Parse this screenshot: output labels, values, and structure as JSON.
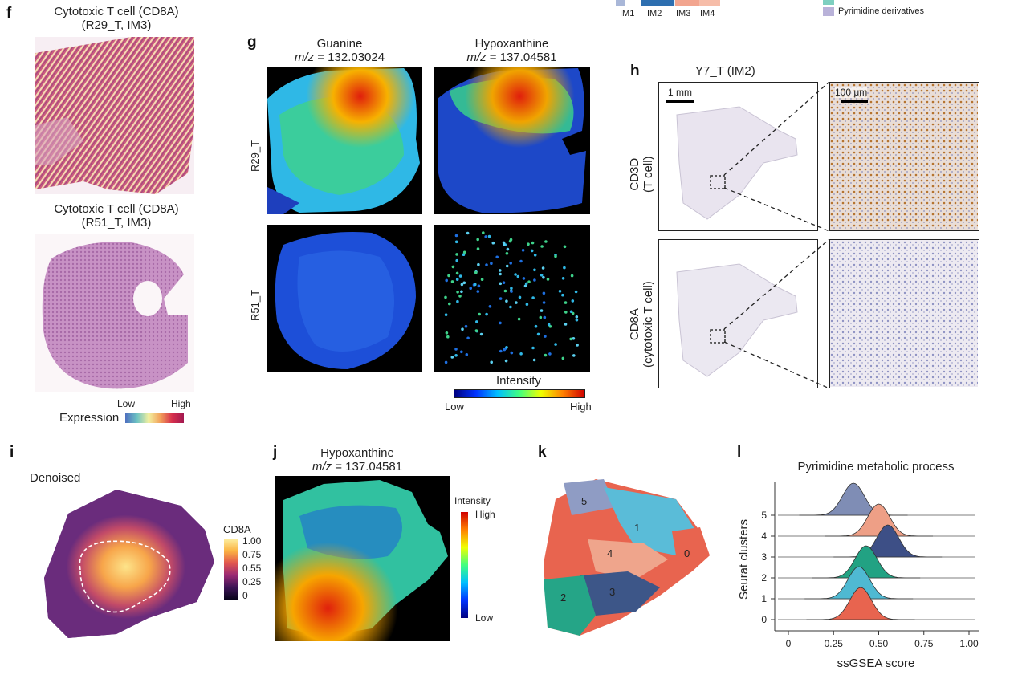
{
  "top_legend": {
    "im_labels": [
      "IM1",
      "IM2",
      "IM3",
      "IM4"
    ],
    "im_colors": [
      "#a9b7d8",
      "#2e6fb0",
      "#e6eef6",
      "#f2a58f",
      "#f4b29e"
    ],
    "pathway_items": [
      {
        "label": "Pyrimidine derivatives",
        "color": "#b9b2d9"
      }
    ],
    "partial_color_teal": "#7ecfc0"
  },
  "panel_f": {
    "letter": "f",
    "title1_line1": "Cytotoxic T cell (CD8A)",
    "title1_line2": "(R29_T, IM3)",
    "title2_line1": "Cytotoxic T cell (CD8A)",
    "title2_line2": "(R51_T, IM3)",
    "legend_low": "Low",
    "legend_high": "High",
    "legend_title": "Expression"
  },
  "panel_g": {
    "letter": "g",
    "col1_name": "Guanine",
    "col1_mz_prefix": "m/z",
    "col1_mz": " = 132.03024",
    "col2_name": "Hypoxanthine",
    "col2_mz_prefix": "m/z",
    "col2_mz": " = 137.04581",
    "row1": "R29_T",
    "row2": "R51_T",
    "cbar_title": "Intensity",
    "cbar_low": "Low",
    "cbar_high": "High"
  },
  "panel_h": {
    "letter": "h",
    "title": "Y7_T (IM2)",
    "scale1": "1 mm",
    "scale2": "100 μm",
    "row1_line1": "CD3D",
    "row1_line2": "(T cell)",
    "row2_line1": "CD8A",
    "row2_line2": "(cytotoxic T cell)"
  },
  "panel_i": {
    "letter": "i",
    "label": "Denoised",
    "cbar_title": "CD8A",
    "cbar_ticks": [
      "1.00",
      "0.75",
      "0.55",
      "0.25",
      "0"
    ]
  },
  "panel_j": {
    "letter": "j",
    "name": "Hypoxanthine",
    "mz_prefix": "m/z",
    "mz": " = 137.04581",
    "cbar_title": "Intensity",
    "cbar_high": "High",
    "cbar_low": "Low"
  },
  "panel_k": {
    "letter": "k",
    "cluster_labels": [
      "0",
      "1",
      "2",
      "3",
      "4",
      "5"
    ]
  },
  "panel_l": {
    "letter": "l",
    "title": "Pyrimidine metabolic process",
    "ylabel": "Seurat clusters",
    "xlabel": "ssGSEA score"
  },
  "chart_data": {
    "type": "area",
    "title": "Pyrimidine metabolic process",
    "xlabel": "ssGSEA score",
    "ylabel": "Seurat clusters",
    "x_ticks": [
      "0",
      "0.25",
      "0.50",
      "0.75",
      "1.00"
    ],
    "xlim": [
      0,
      1.0
    ],
    "categories": [
      "0",
      "1",
      "2",
      "3",
      "4",
      "5"
    ],
    "series": [
      {
        "cluster": "5",
        "peak": 0.36,
        "color": "#7f8db5"
      },
      {
        "cluster": "4",
        "peak": 0.5,
        "color": "#ee9f86"
      },
      {
        "cluster": "3",
        "peak": 0.55,
        "color": "#3d4f86"
      },
      {
        "cluster": "2",
        "peak": 0.43,
        "color": "#22a283"
      },
      {
        "cluster": "1",
        "peak": 0.39,
        "color": "#4fb9d2"
      },
      {
        "cluster": "0",
        "peak": 0.4,
        "color": "#e8644f"
      }
    ]
  }
}
